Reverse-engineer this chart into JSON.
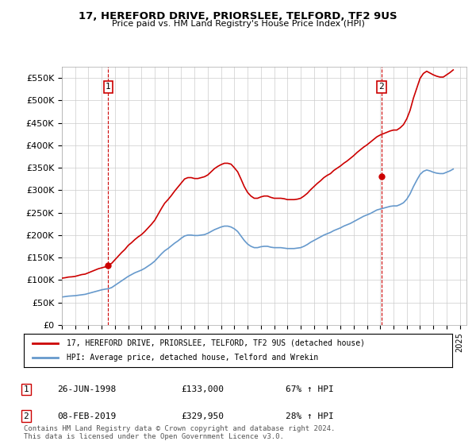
{
  "title": "17, HEREFORD DRIVE, PRIORSLEE, TELFORD, TF2 9US",
  "subtitle": "Price paid vs. HM Land Registry's House Price Index (HPI)",
  "ylabel": "",
  "ylim": [
    0,
    575000
  ],
  "yticks": [
    0,
    50000,
    100000,
    150000,
    200000,
    250000,
    300000,
    350000,
    400000,
    450000,
    500000,
    550000
  ],
  "ytick_labels": [
    "£0",
    "£50K",
    "£100K",
    "£150K",
    "£200K",
    "£250K",
    "£300K",
    "£350K",
    "£400K",
    "£450K",
    "£500K",
    "£550K"
  ],
  "sale1_date": 1998.49,
  "sale1_price": 133000,
  "sale1_label": "1",
  "sale1_text": "26-JUN-1998",
  "sale1_amount": "£133,000",
  "sale1_hpi": "67% ↑ HPI",
  "sale2_date": 2019.1,
  "sale2_price": 329950,
  "sale2_label": "2",
  "sale2_text": "08-FEB-2019",
  "sale2_amount": "£329,950",
  "sale2_hpi": "28% ↑ HPI",
  "legend_line1": "17, HEREFORD DRIVE, PRIORSLEE, TELFORD, TF2 9US (detached house)",
  "legend_line2": "HPI: Average price, detached house, Telford and Wrekin",
  "footer": "Contains HM Land Registry data © Crown copyright and database right 2024.\nThis data is licensed under the Open Government Licence v3.0.",
  "red_color": "#cc0000",
  "blue_color": "#6699cc",
  "bg_color": "#ffffff",
  "grid_color": "#cccccc",
  "sale_vline_color": "#cc0000",
  "xmin": 1995,
  "xmax": 2025.5,
  "hpi_data_x": [
    1995.0,
    1995.25,
    1995.5,
    1995.75,
    1996.0,
    1996.25,
    1996.5,
    1996.75,
    1997.0,
    1997.25,
    1997.5,
    1997.75,
    1998.0,
    1998.25,
    1998.5,
    1998.75,
    1999.0,
    1999.25,
    1999.5,
    1999.75,
    2000.0,
    2000.25,
    2000.5,
    2000.75,
    2001.0,
    2001.25,
    2001.5,
    2001.75,
    2002.0,
    2002.25,
    2002.5,
    2002.75,
    2003.0,
    2003.25,
    2003.5,
    2003.75,
    2004.0,
    2004.25,
    2004.5,
    2004.75,
    2005.0,
    2005.25,
    2005.5,
    2005.75,
    2006.0,
    2006.25,
    2006.5,
    2006.75,
    2007.0,
    2007.25,
    2007.5,
    2007.75,
    2008.0,
    2008.25,
    2008.5,
    2008.75,
    2009.0,
    2009.25,
    2009.5,
    2009.75,
    2010.0,
    2010.25,
    2010.5,
    2010.75,
    2011.0,
    2011.25,
    2011.5,
    2011.75,
    2012.0,
    2012.25,
    2012.5,
    2012.75,
    2013.0,
    2013.25,
    2013.5,
    2013.75,
    2014.0,
    2014.25,
    2014.5,
    2014.75,
    2015.0,
    2015.25,
    2015.5,
    2015.75,
    2016.0,
    2016.25,
    2016.5,
    2016.75,
    2017.0,
    2017.25,
    2017.5,
    2017.75,
    2018.0,
    2018.25,
    2018.5,
    2018.75,
    2019.0,
    2019.25,
    2019.5,
    2019.75,
    2020.0,
    2020.25,
    2020.5,
    2020.75,
    2021.0,
    2021.25,
    2021.5,
    2021.75,
    2022.0,
    2022.25,
    2022.5,
    2022.75,
    2023.0,
    2023.25,
    2023.5,
    2023.75,
    2024.0,
    2024.25,
    2024.5
  ],
  "hpi_data_y": [
    62000,
    63000,
    64000,
    64500,
    65000,
    66000,
    67000,
    68000,
    70000,
    72000,
    74000,
    76000,
    78000,
    79500,
    80500,
    83000,
    88000,
    93000,
    98000,
    103000,
    108000,
    112000,
    116000,
    119000,
    122000,
    126000,
    131000,
    136000,
    142000,
    150000,
    158000,
    165000,
    170000,
    176000,
    182000,
    187000,
    193000,
    198000,
    200000,
    200000,
    199000,
    199000,
    200000,
    201000,
    204000,
    208000,
    212000,
    215000,
    218000,
    220000,
    220000,
    218000,
    214000,
    208000,
    198000,
    188000,
    180000,
    175000,
    172000,
    172000,
    174000,
    175000,
    175000,
    173000,
    172000,
    172000,
    172000,
    171000,
    170000,
    170000,
    170000,
    171000,
    172000,
    175000,
    179000,
    184000,
    188000,
    192000,
    196000,
    200000,
    203000,
    206000,
    210000,
    213000,
    216000,
    220000,
    223000,
    226000,
    230000,
    234000,
    238000,
    242000,
    245000,
    248000,
    252000,
    256000,
    258000,
    260000,
    262000,
    264000,
    265000,
    265000,
    268000,
    272000,
    280000,
    292000,
    308000,
    322000,
    335000,
    342000,
    345000,
    343000,
    340000,
    338000,
    337000,
    337000,
    340000,
    343000,
    347000
  ],
  "price_data_x": [
    1995.0,
    1995.25,
    1995.5,
    1995.75,
    1996.0,
    1996.25,
    1996.5,
    1996.75,
    1997.0,
    1997.25,
    1997.5,
    1997.75,
    1998.0,
    1998.25,
    1998.5,
    1998.75,
    1999.0,
    1999.25,
    1999.5,
    1999.75,
    2000.0,
    2000.25,
    2000.5,
    2000.75,
    2001.0,
    2001.25,
    2001.5,
    2001.75,
    2002.0,
    2002.25,
    2002.5,
    2002.75,
    2003.0,
    2003.25,
    2003.5,
    2003.75,
    2004.0,
    2004.25,
    2004.5,
    2004.75,
    2005.0,
    2005.25,
    2005.5,
    2005.75,
    2006.0,
    2006.25,
    2006.5,
    2006.75,
    2007.0,
    2007.25,
    2007.5,
    2007.75,
    2008.0,
    2008.25,
    2008.5,
    2008.75,
    2009.0,
    2009.25,
    2009.5,
    2009.75,
    2010.0,
    2010.25,
    2010.5,
    2010.75,
    2011.0,
    2011.25,
    2011.5,
    2011.75,
    2012.0,
    2012.25,
    2012.5,
    2012.75,
    2013.0,
    2013.25,
    2013.5,
    2013.75,
    2014.0,
    2014.25,
    2014.5,
    2014.75,
    2015.0,
    2015.25,
    2015.5,
    2015.75,
    2016.0,
    2016.25,
    2016.5,
    2016.75,
    2017.0,
    2017.25,
    2017.5,
    2017.75,
    2018.0,
    2018.25,
    2018.5,
    2018.75,
    2019.0,
    2019.25,
    2019.5,
    2019.75,
    2020.0,
    2020.25,
    2020.5,
    2020.75,
    2021.0,
    2021.25,
    2021.5,
    2021.75,
    2022.0,
    2022.25,
    2022.5,
    2022.75,
    2023.0,
    2023.25,
    2023.5,
    2023.75,
    2024.0,
    2024.25,
    2024.5
  ],
  "price_data_y": [
    104000,
    105000,
    106500,
    107000,
    108000,
    110000,
    112000,
    113000,
    116000,
    119000,
    122000,
    125000,
    127000,
    129000,
    133000,
    137000,
    145000,
    153000,
    161000,
    168000,
    177000,
    183000,
    190000,
    196000,
    201000,
    208000,
    216000,
    224000,
    233000,
    246000,
    259000,
    271000,
    279000,
    288000,
    298000,
    307000,
    316000,
    325000,
    328000,
    328000,
    326000,
    326000,
    328000,
    330000,
    334000,
    341000,
    348000,
    353000,
    357000,
    360000,
    360000,
    358000,
    350000,
    341000,
    325000,
    308000,
    295000,
    287000,
    282000,
    282000,
    285000,
    287000,
    287000,
    284000,
    282000,
    282000,
    282000,
    281000,
    279000,
    279000,
    279000,
    280000,
    282000,
    287000,
    293000,
    301000,
    308000,
    315000,
    321000,
    328000,
    333000,
    337000,
    344000,
    349000,
    354000,
    360000,
    365000,
    371000,
    377000,
    384000,
    390000,
    396000,
    401000,
    407000,
    413000,
    419000,
    423000,
    426000,
    429000,
    432000,
    434000,
    434000,
    439000,
    446000,
    459000,
    478000,
    505000,
    527000,
    549000,
    560000,
    565000,
    561000,
    557000,
    554000,
    552000,
    552000,
    557000,
    562000,
    568000
  ]
}
